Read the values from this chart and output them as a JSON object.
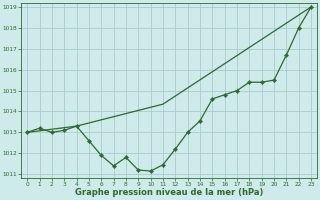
{
  "line1_x": [
    0,
    1,
    2,
    3,
    4,
    5,
    6,
    7,
    8,
    9,
    10,
    11,
    12,
    13,
    14,
    15,
    16,
    17,
    18,
    19,
    20,
    21,
    22,
    23
  ],
  "line1_y": [
    1013.0,
    1013.2,
    1013.0,
    1013.1,
    1013.3,
    1012.6,
    1011.9,
    1011.4,
    1011.8,
    1011.2,
    1011.15,
    1011.45,
    1012.2,
    1013.0,
    1013.55,
    1014.6,
    1014.8,
    1015.0,
    1015.4,
    1015.4,
    1015.5,
    1016.7,
    1018.0,
    1019.0
  ],
  "line2_x": [
    0,
    4,
    11,
    23
  ],
  "line2_y": [
    1013.0,
    1013.3,
    1014.35,
    1019.0
  ],
  "line_color": "#2d6a2d",
  "bg_color": "#ceeaea",
  "grid_color": "#aacccc",
  "xlabel": "Graphe pression niveau de la mer (hPa)",
  "ylim": [
    1010.8,
    1019.2
  ],
  "xlim": [
    -0.5,
    23.5
  ],
  "yticks": [
    1011,
    1012,
    1013,
    1014,
    1015,
    1016,
    1017,
    1018,
    1019
  ],
  "xticks": [
    0,
    1,
    2,
    3,
    4,
    5,
    6,
    7,
    8,
    9,
    10,
    11,
    12,
    13,
    14,
    15,
    16,
    17,
    18,
    19,
    20,
    21,
    22,
    23
  ],
  "xlabel_fontsize": 6.0,
  "tick_fontsize": 4.2
}
